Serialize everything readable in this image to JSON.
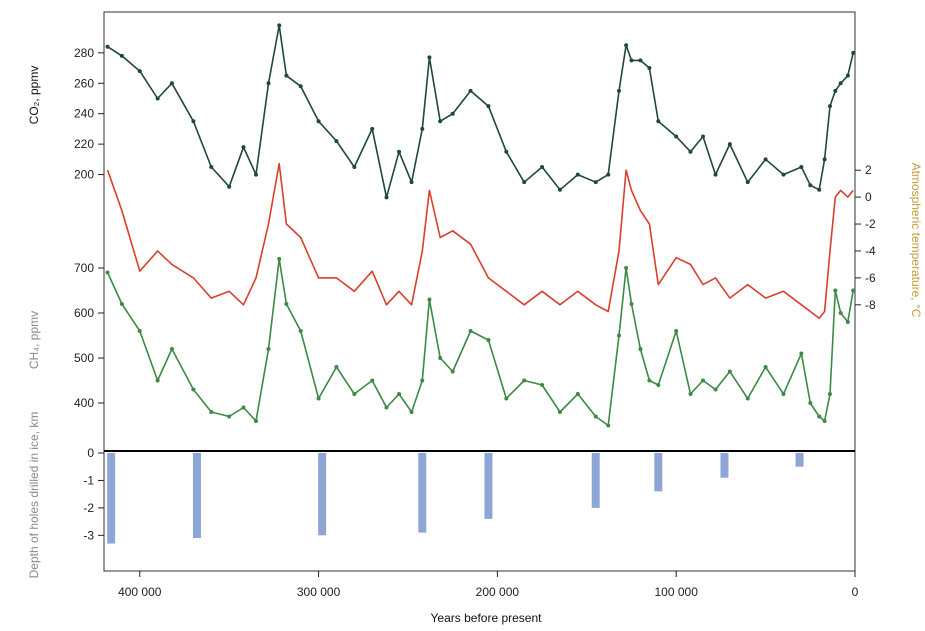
{
  "chart_data": {
    "type": "line",
    "x_label": "Years before present",
    "x_range": [
      420000,
      0
    ],
    "x_ticks": [
      {
        "value": 400000,
        "label": "400 000"
      },
      {
        "value": 300000,
        "label": "300 000"
      },
      {
        "value": 200000,
        "label": "200 000"
      },
      {
        "value": 100000,
        "label": "100 000"
      },
      {
        "value": 0,
        "label": "0"
      }
    ],
    "panels": [
      {
        "id": "co2",
        "axis_label": "CO₂, ppmv",
        "axis_side": "left",
        "color": "#1f4a33",
        "range": [
          180,
          295
        ],
        "ticks": [
          "200",
          "220",
          "240",
          "260",
          "280"
        ],
        "x": [
          418000,
          410000,
          400000,
          390000,
          382000,
          370000,
          360000,
          350000,
          342000,
          335000,
          328000,
          322000,
          318000,
          310000,
          300000,
          290000,
          280000,
          270000,
          262000,
          255000,
          248000,
          242000,
          238000,
          232000,
          225000,
          215000,
          205000,
          195000,
          185000,
          175000,
          165000,
          155000,
          145000,
          138000,
          132000,
          128000,
          125000,
          120000,
          115000,
          110000,
          100000,
          92000,
          85000,
          78000,
          70000,
          60000,
          50000,
          40000,
          30000,
          25000,
          20000,
          17000,
          14000,
          11000,
          8000,
          4000,
          1000
        ],
        "values": [
          284,
          278,
          268,
          250,
          260,
          235,
          205,
          192,
          218,
          200,
          260,
          298,
          265,
          258,
          235,
          222,
          205,
          230,
          185,
          215,
          195,
          230,
          277,
          235,
          240,
          255,
          245,
          215,
          195,
          205,
          190,
          200,
          195,
          200,
          255,
          285,
          275,
          275,
          270,
          235,
          225,
          215,
          225,
          200,
          220,
          195,
          210,
          200,
          205,
          193,
          190,
          210,
          245,
          255,
          260,
          265,
          280
        ]
      },
      {
        "id": "temp",
        "axis_label": "Atmospheric temperature, °C",
        "axis_side": "right",
        "color": "#d8402c",
        "range": [
          -9.5,
          3.5
        ],
        "ticks": [
          "2",
          "0",
          "-2",
          "-4",
          "-6",
          "-8"
        ],
        "x": [
          418000,
          410000,
          400000,
          390000,
          382000,
          370000,
          360000,
          350000,
          342000,
          335000,
          328000,
          322000,
          318000,
          310000,
          300000,
          290000,
          280000,
          270000,
          262000,
          255000,
          248000,
          242000,
          238000,
          232000,
          225000,
          215000,
          205000,
          195000,
          185000,
          175000,
          165000,
          155000,
          145000,
          138000,
          132000,
          128000,
          125000,
          120000,
          115000,
          110000,
          100000,
          92000,
          85000,
          78000,
          70000,
          60000,
          50000,
          40000,
          30000,
          25000,
          20000,
          17000,
          14000,
          11000,
          8000,
          4000,
          1000
        ],
        "values": [
          2.0,
          -1.0,
          -5.5,
          -4.0,
          -5.0,
          -6.0,
          -7.5,
          -7.0,
          -8.0,
          -6.0,
          -2.0,
          2.5,
          -2.0,
          -3.0,
          -6.0,
          -6.0,
          -7.0,
          -5.5,
          -8.0,
          -7.0,
          -8.0,
          -4.0,
          0.5,
          -3.0,
          -2.5,
          -3.5,
          -6.0,
          -7.0,
          -8.0,
          -7.0,
          -8.0,
          -7.0,
          -8.0,
          -8.5,
          -4.0,
          2.0,
          0.5,
          -1.0,
          -2.0,
          -6.5,
          -4.5,
          -5.0,
          -6.5,
          -6.0,
          -7.5,
          -6.5,
          -7.5,
          -7.0,
          -8.0,
          -8.5,
          -9.0,
          -8.5,
          -4.0,
          0.0,
          0.5,
          0.0,
          0.5
        ]
      },
      {
        "id": "ch4",
        "axis_label": "CH₄, ppmv",
        "axis_side": "left",
        "color": "#3c8a45",
        "range": [
          340,
          740
        ],
        "ticks": [
          "400",
          "500",
          "600",
          "700"
        ],
        "x": [
          418000,
          410000,
          400000,
          390000,
          382000,
          370000,
          360000,
          350000,
          342000,
          335000,
          328000,
          322000,
          318000,
          310000,
          300000,
          290000,
          280000,
          270000,
          262000,
          255000,
          248000,
          242000,
          238000,
          232000,
          225000,
          215000,
          205000,
          195000,
          185000,
          175000,
          165000,
          155000,
          145000,
          138000,
          132000,
          128000,
          125000,
          120000,
          115000,
          110000,
          100000,
          92000,
          85000,
          78000,
          70000,
          60000,
          50000,
          40000,
          30000,
          25000,
          20000,
          17000,
          14000,
          11000,
          8000,
          4000,
          1000
        ],
        "values": [
          690,
          620,
          560,
          450,
          520,
          430,
          380,
          370,
          390,
          360,
          520,
          720,
          620,
          560,
          410,
          480,
          420,
          450,
          390,
          420,
          380,
          450,
          630,
          500,
          470,
          560,
          540,
          410,
          450,
          440,
          380,
          420,
          370,
          350,
          550,
          700,
          620,
          520,
          450,
          440,
          560,
          420,
          450,
          430,
          470,
          410,
          480,
          420,
          510,
          400,
          370,
          360,
          420,
          650,
          600,
          580,
          650
        ]
      }
    ],
    "depth_panel": {
      "axis_label": "Depth of holes drilled in ice, km",
      "range": [
        -4.3,
        0
      ],
      "ticks": [
        "0",
        "-1",
        "-2",
        "-3"
      ],
      "color": "#8ea6d6",
      "bars": [
        {
          "x": 416000,
          "depth": -3.3
        },
        {
          "x": 368000,
          "depth": -3.1
        },
        {
          "x": 298000,
          "depth": -3.0
        },
        {
          "x": 242000,
          "depth": -2.9
        },
        {
          "x": 205000,
          "depth": -2.4
        },
        {
          "x": 145000,
          "depth": -2.0
        },
        {
          "x": 110000,
          "depth": -1.4
        },
        {
          "x": 73000,
          "depth": -0.9
        },
        {
          "x": 31000,
          "depth": -0.5
        }
      ]
    }
  }
}
